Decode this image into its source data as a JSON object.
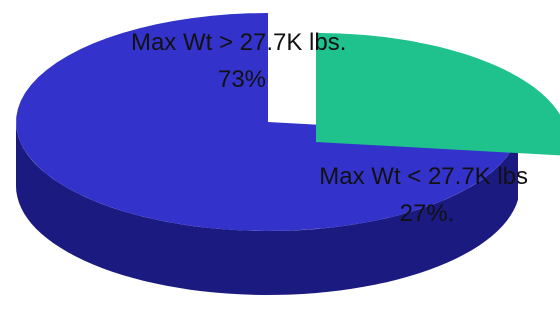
{
  "chart_data": {
    "type": "pie",
    "style": "3d-exploded",
    "slices": [
      {
        "label_line1": "Max Wt > 27.7K lbs.",
        "label_line2": "73%",
        "value": 73,
        "color": "#3333cc",
        "side_color": "#1a1a80",
        "inner_color": "#141450"
      },
      {
        "label_line1": "Max Wt < 27.7K lbs",
        "label_line2": "27%.",
        "value": 27,
        "color": "#1fc28c",
        "side_color": "#0f6e46",
        "inner_color": "#0b4a30"
      }
    ],
    "legend": "none"
  }
}
